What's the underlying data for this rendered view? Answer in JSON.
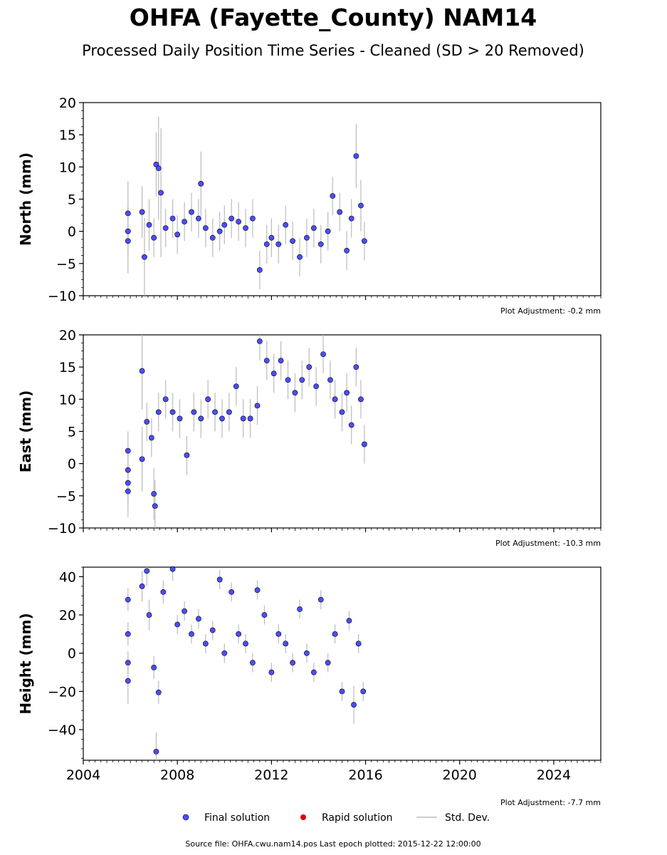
{
  "title": "OHFA (Fayette_County) NAM14",
  "subtitle": "Processed Daily Position Time Series - Cleaned (SD > 20 Removed)",
  "legend": {
    "final": "Final solution",
    "rapid": "Rapid solution",
    "stddev": "Std. Dev."
  },
  "source_note": "Source file: OHFA.cwu.nam14.pos  Last epoch plotted: 2015-12-22 12:00:00",
  "colors": {
    "final_fill": "#4d4dff",
    "final_edge": "#000000",
    "rapid": "#e00000",
    "stddev": "#bbbbbb"
  },
  "chart_data": [
    {
      "type": "scatter",
      "panel": "north",
      "ylabel": "North (mm)",
      "ylim": [
        -10,
        20
      ],
      "yticks": [
        -10,
        -5,
        0,
        5,
        10,
        15,
        20
      ],
      "ytick_labels": [
        "−10",
        "−5",
        "0",
        "5",
        "10",
        "15",
        "20"
      ],
      "xlim": [
        2004,
        2026
      ],
      "adjustment": "Plot Adjustment: -0.2 mm",
      "series": [
        {
          "name": "Final solution",
          "x": [
            2005.9,
            2005.9,
            2005.9,
            2006.5,
            2006.6,
            2006.8,
            2007.0,
            2007.1,
            2007.2,
            2007.3,
            2007.5,
            2007.8,
            2008.0,
            2008.3,
            2008.6,
            2008.9,
            2009.0,
            2009.2,
            2009.5,
            2009.8,
            2010.0,
            2010.3,
            2010.6,
            2010.9,
            2011.2,
            2011.5,
            2011.8,
            2012.0,
            2012.3,
            2012.6,
            2012.9,
            2013.2,
            2013.5,
            2013.8,
            2014.1,
            2014.4,
            2014.6,
            2014.9,
            2015.2,
            2015.4,
            2015.6,
            2015.8,
            2015.95
          ],
          "y": [
            2.8,
            0.0,
            -1.5,
            3.0,
            -4.0,
            1.0,
            -1.0,
            10.4,
            9.8,
            6.0,
            0.5,
            2.0,
            -0.5,
            1.5,
            3.0,
            2.0,
            7.4,
            0.5,
            -1.0,
            0.0,
            1.0,
            2.0,
            1.5,
            0.5,
            2.0,
            -6.0,
            -2.0,
            -1.0,
            -2.0,
            1.0,
            -1.5,
            -4.0,
            -1.0,
            0.5,
            -2.0,
            0.0,
            5.5,
            3.0,
            -3.0,
            2.0,
            11.7,
            4.0,
            -1.5
          ],
          "sd": [
            5.0,
            4.0,
            5.0,
            4.0,
            6.0,
            4.0,
            3.0,
            5.0,
            8.0,
            10.0,
            3.0,
            3.0,
            3.0,
            3.0,
            3.0,
            3.0,
            5.0,
            3.0,
            3.0,
            3.0,
            3.0,
            3.0,
            3.0,
            3.0,
            3.0,
            3.0,
            3.0,
            3.0,
            3.0,
            3.0,
            3.0,
            3.0,
            3.0,
            3.0,
            3.0,
            3.0,
            3.0,
            3.0,
            3.0,
            3.0,
            5.0,
            4.0,
            3.0
          ]
        }
      ]
    },
    {
      "type": "scatter",
      "panel": "east",
      "ylabel": "East (mm)",
      "ylim": [
        -10,
        20
      ],
      "yticks": [
        -10,
        -5,
        0,
        5,
        10,
        15,
        20
      ],
      "ytick_labels": [
        "−10",
        "−5",
        "0",
        "5",
        "10",
        "15",
        "20"
      ],
      "xlim": [
        2004,
        2026
      ],
      "adjustment": "Plot Adjustment: -10.3 mm",
      "series": [
        {
          "name": "Final solution",
          "x": [
            2005.9,
            2005.9,
            2005.9,
            2005.9,
            2006.5,
            2006.5,
            2006.7,
            2006.9,
            2007.0,
            2007.05,
            2007.2,
            2007.5,
            2007.8,
            2008.1,
            2008.4,
            2008.7,
            2009.0,
            2009.3,
            2009.6,
            2009.9,
            2010.2,
            2010.5,
            2010.8,
            2011.1,
            2011.4,
            2011.5,
            2011.8,
            2012.1,
            2012.4,
            2012.7,
            2013.0,
            2013.3,
            2013.6,
            2013.9,
            2014.2,
            2014.5,
            2014.7,
            2015.0,
            2015.2,
            2015.4,
            2015.6,
            2015.8,
            2015.95
          ],
          "y": [
            2.0,
            -1.0,
            -3.0,
            -4.3,
            14.4,
            0.7,
            6.5,
            4.0,
            -4.7,
            -6.6,
            8.0,
            10.0,
            8.0,
            7.0,
            1.3,
            8.0,
            7.0,
            10.0,
            8.0,
            7.0,
            8.0,
            12.0,
            7.0,
            7.0,
            9.0,
            19.0,
            16.0,
            14.0,
            16.0,
            13.0,
            11.0,
            13.0,
            15.0,
            12.0,
            17.0,
            13.0,
            10.0,
            8.0,
            11.0,
            6.0,
            15.0,
            10.0,
            3.0
          ],
          "sd": [
            3.0,
            3.0,
            3.0,
            4.0,
            6.0,
            5.0,
            3.0,
            3.0,
            4.0,
            4.0,
            3.0,
            3.0,
            3.0,
            3.0,
            3.0,
            3.0,
            3.0,
            3.0,
            3.0,
            3.0,
            3.0,
            3.0,
            3.0,
            3.0,
            3.0,
            3.0,
            3.0,
            3.0,
            3.0,
            3.0,
            3.0,
            3.0,
            3.0,
            3.0,
            3.0,
            3.0,
            3.0,
            3.0,
            3.0,
            3.0,
            3.0,
            3.0,
            3.0
          ]
        }
      ]
    },
    {
      "type": "scatter",
      "panel": "height",
      "ylabel": "Height (mm)",
      "ylim": [
        -56,
        45
      ],
      "yticks": [
        -40,
        -20,
        0,
        20,
        40
      ],
      "ytick_labels": [
        "−40",
        "−20",
        "0",
        "20",
        "40"
      ],
      "xlim": [
        2004,
        2026
      ],
      "xticks": [
        2004,
        2008,
        2012,
        2016,
        2020,
        2024
      ],
      "xtick_labels": [
        "2004",
        "2008",
        "2012",
        "2016",
        "2020",
        "2024"
      ],
      "adjustment": "Plot Adjustment: -7.7 mm",
      "series": [
        {
          "name": "Final solution",
          "x": [
            2005.9,
            2005.9,
            2005.9,
            2005.9,
            2006.5,
            2006.7,
            2006.8,
            2007.0,
            2007.1,
            2007.2,
            2007.4,
            2007.8,
            2008.0,
            2008.3,
            2008.6,
            2008.9,
            2009.2,
            2009.5,
            2009.8,
            2010.0,
            2010.3,
            2010.6,
            2010.9,
            2011.2,
            2011.4,
            2011.7,
            2012.0,
            2012.3,
            2012.6,
            2012.9,
            2013.2,
            2013.5,
            2013.8,
            2014.1,
            2014.4,
            2014.7,
            2015.0,
            2015.3,
            2015.5,
            2015.7,
            2015.9
          ],
          "y": [
            28.0,
            10.0,
            -5.0,
            -14.5,
            35.0,
            43.0,
            20.0,
            -7.5,
            -51.5,
            -20.5,
            32.0,
            44.0,
            15.0,
            22.0,
            10.0,
            18.0,
            5.0,
            12.0,
            38.5,
            0.0,
            32.0,
            10.0,
            5.0,
            -5.0,
            33.0,
            20.0,
            -10.0,
            10.0,
            5.0,
            -5.0,
            23.0,
            0.0,
            -10.0,
            28.0,
            -5.0,
            10.0,
            -20.0,
            17.0,
            -27.0,
            5.0,
            -20.0
          ],
          "sd": [
            6.0,
            6.0,
            6.0,
            12.0,
            8.0,
            8.0,
            8.0,
            6.0,
            10.0,
            6.0,
            6.0,
            6.0,
            5.0,
            5.0,
            5.0,
            5.0,
            5.0,
            5.0,
            5.0,
            5.0,
            5.0,
            5.0,
            5.0,
            5.0,
            5.0,
            5.0,
            5.0,
            5.0,
            5.0,
            5.0,
            5.0,
            5.0,
            5.0,
            5.0,
            5.0,
            5.0,
            5.0,
            5.0,
            10.0,
            5.0,
            5.0
          ]
        }
      ]
    }
  ]
}
